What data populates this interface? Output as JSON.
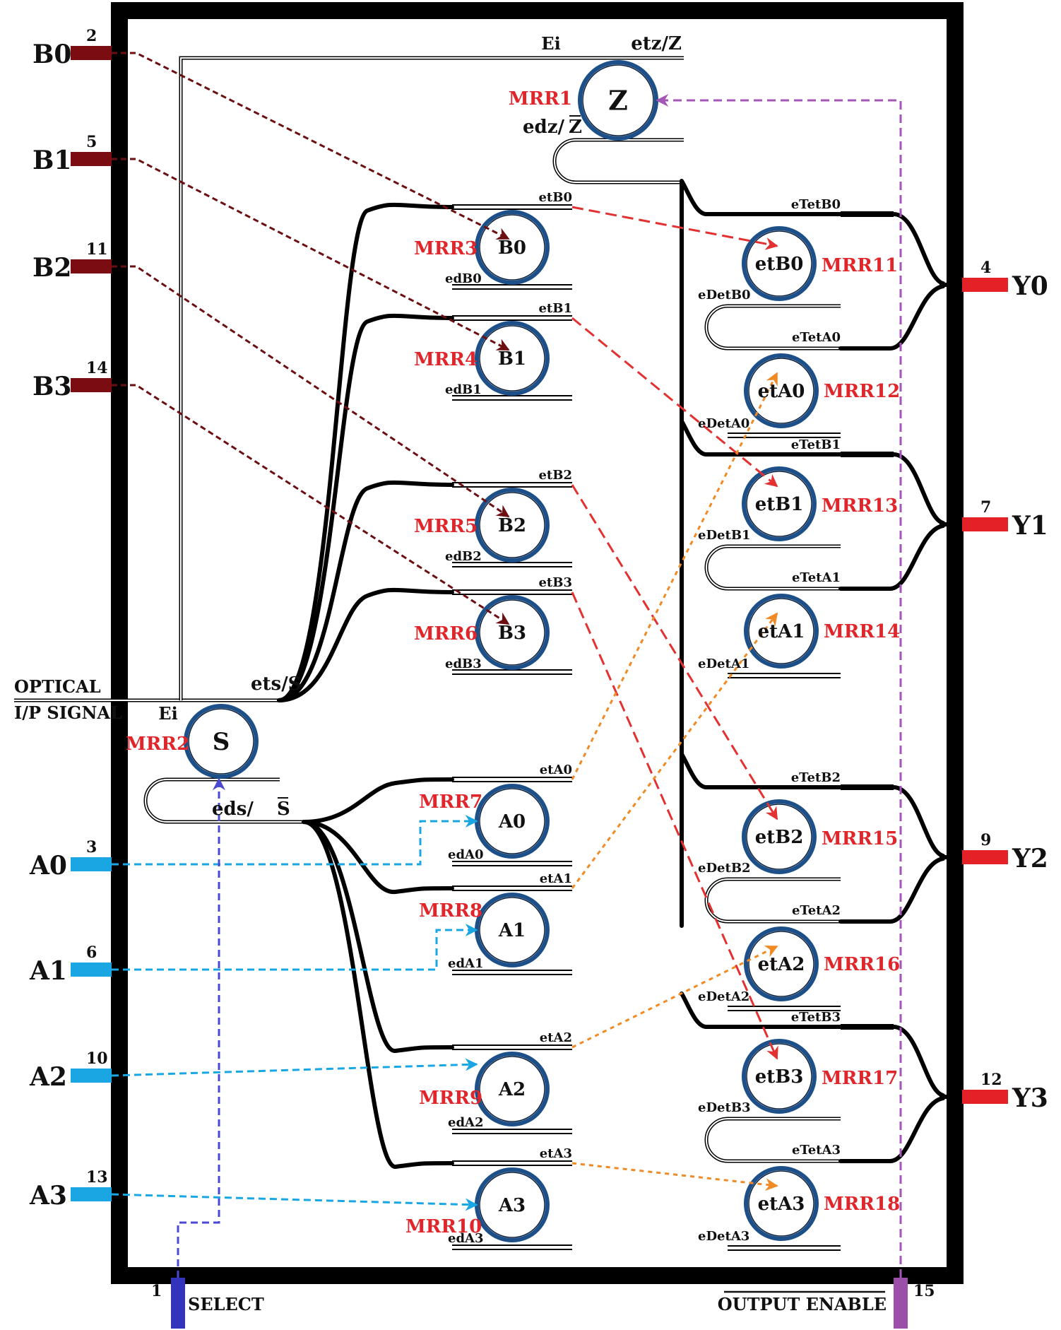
{
  "diagram": {
    "colors": {
      "frame": "#000000",
      "b_pin": "#7b0c12",
      "a_pin": "#1aa6e3",
      "y_pin": "#e32127",
      "select_pin": "#3333bb",
      "oe_pin": "#9b4fa8",
      "mrr_label": "#e0262b",
      "b_arrow": "#6b0f12",
      "et_b_arrow": "#e33131",
      "et_a_arrow": "#f08a25",
      "a_arrow": "#1aa6e3",
      "select_arrow": "#4a4ad0",
      "oe_arrow": "#a456b7"
    },
    "inputs_b": [
      {
        "name": "B0",
        "pin": "2"
      },
      {
        "name": "B1",
        "pin": "5"
      },
      {
        "name": "B2",
        "pin": "11"
      },
      {
        "name": "B3",
        "pin": "14"
      }
    ],
    "inputs_a": [
      {
        "name": "A0",
        "pin": "3"
      },
      {
        "name": "A1",
        "pin": "6"
      },
      {
        "name": "A2",
        "pin": "10"
      },
      {
        "name": "A3",
        "pin": "13"
      }
    ],
    "outputs": [
      {
        "name": "Y0",
        "pin": "4"
      },
      {
        "name": "Y1",
        "pin": "7"
      },
      {
        "name": "Y2",
        "pin": "9"
      },
      {
        "name": "Y3",
        "pin": "12"
      }
    ],
    "select": {
      "label": "SELECT",
      "pin": "1"
    },
    "output_enable": {
      "label": "OUTPUT ENABLE",
      "pin": "15"
    },
    "optical_input": {
      "line1": "OPTICAL",
      "line2": "I/P SIGNAL"
    },
    "top_ring": {
      "mrr": "MRR1",
      "ring": "Z",
      "through": "etz/Z",
      "drop": "edz/",
      "drop_bar": "Z",
      "ei": "Ei"
    },
    "select_ring": {
      "mrr": "MRR2",
      "ring": "S",
      "through": "ets/S",
      "drop": "eds/",
      "drop_bar": "S",
      "ei": "Ei"
    },
    "b_rings": [
      {
        "mrr": "MRR3",
        "ring": "B0",
        "through": "etB0",
        "drop": "edB0"
      },
      {
        "mrr": "MRR4",
        "ring": "B1",
        "through": "etB1",
        "drop": "edB1"
      },
      {
        "mrr": "MRR5",
        "ring": "B2",
        "through": "etB2",
        "drop": "edB2"
      },
      {
        "mrr": "MRR6",
        "ring": "B3",
        "through": "etB3",
        "drop": "edB3"
      }
    ],
    "a_rings": [
      {
        "mrr": "MRR7",
        "ring": "A0",
        "through": "etA0",
        "drop": "edA0"
      },
      {
        "mrr": "MRR8",
        "ring": "A1",
        "through": "etA1",
        "drop": "edA1"
      },
      {
        "mrr": "MRR9",
        "ring": "A2",
        "through": "etA2",
        "drop": "edA2"
      },
      {
        "mrr": "MRR10",
        "ring": "A3",
        "through": "etA3",
        "drop": "edA3"
      }
    ],
    "out_stages": [
      {
        "b_mrr": "MRR11",
        "b_ring": "etB0",
        "tetb": "eTetB0",
        "detb": "eDetB0",
        "teta": "eTetA0",
        "a_mrr": "MRR12",
        "a_ring": "etA0",
        "deta": "eDetA0"
      },
      {
        "b_mrr": "MRR13",
        "b_ring": "etB1",
        "tetb": "eTetB1",
        "detb": "eDetB1",
        "teta": "eTetA1",
        "a_mrr": "MRR14",
        "a_ring": "etA1",
        "deta": "eDetA1"
      },
      {
        "b_mrr": "MRR15",
        "b_ring": "etB2",
        "tetb": "eTetB2",
        "detb": "eDetB2",
        "teta": "eTetA2",
        "a_mrr": "MRR16",
        "a_ring": "etA2",
        "deta": "eDetA2"
      },
      {
        "b_mrr": "MRR17",
        "b_ring": "etB3",
        "tetb": "eTetB3",
        "detb": "eDetB3",
        "teta": "eTetA3",
        "a_mrr": "MRR18",
        "a_ring": "etA3",
        "deta": "eDetA3"
      }
    ]
  }
}
